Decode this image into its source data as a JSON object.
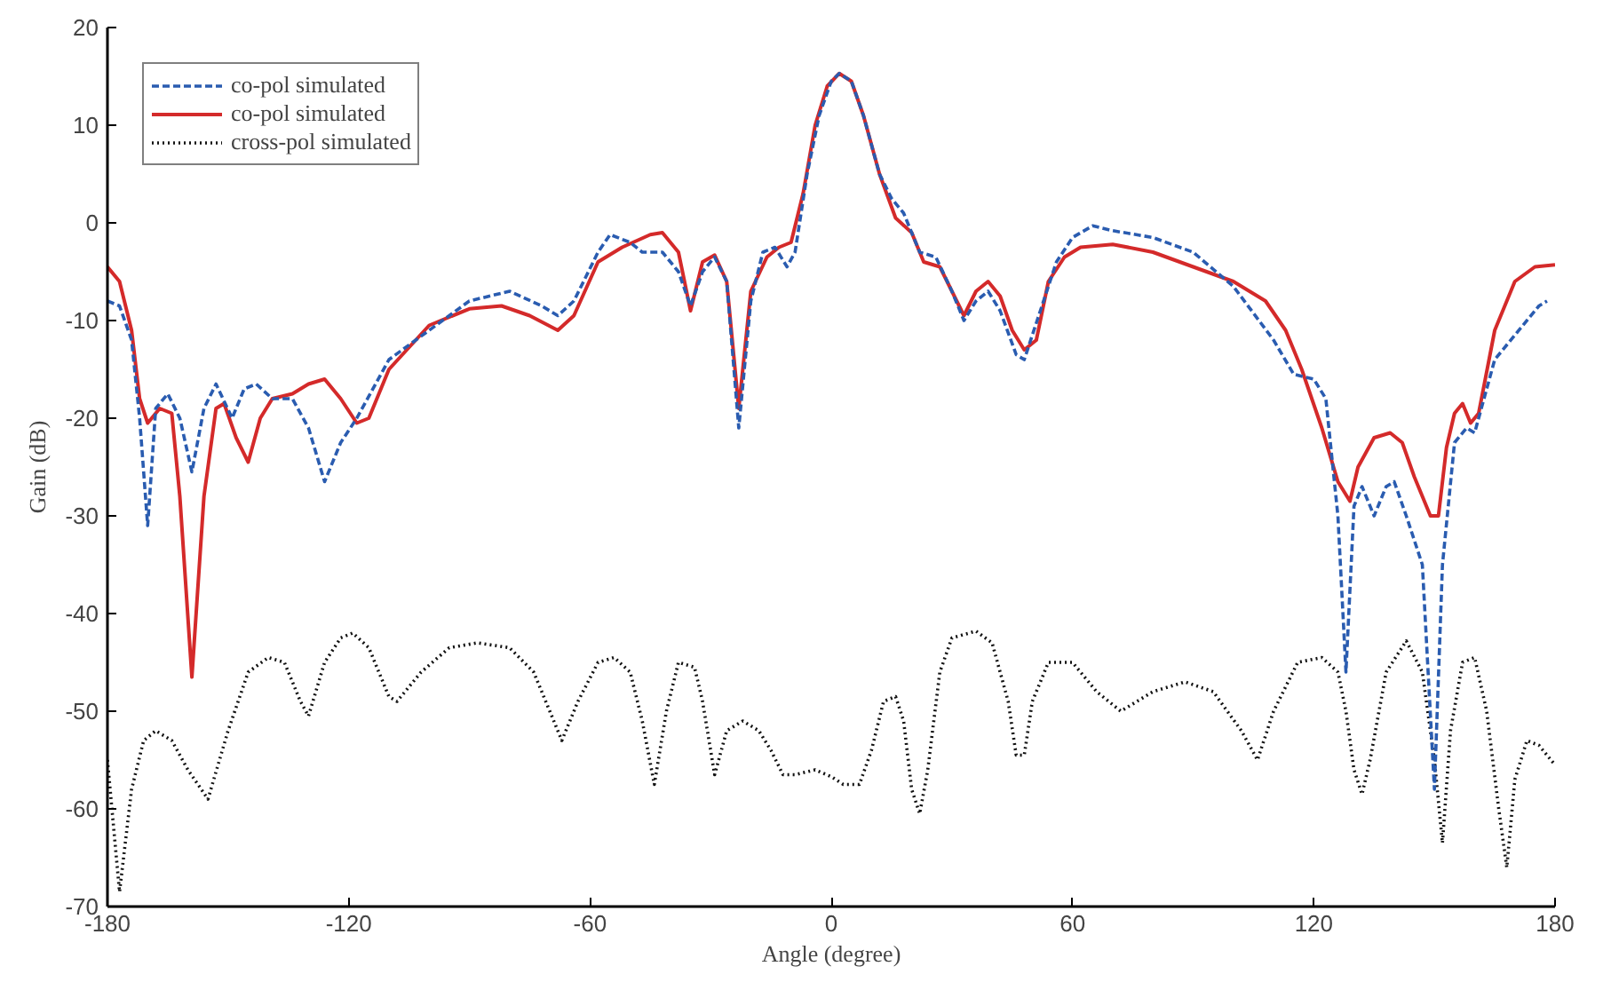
{
  "chart_data": {
    "type": "line",
    "xlabel": "Angle (degree)",
    "ylabel": "Gain (dB)",
    "xlim": [
      -180,
      180
    ],
    "ylim": [
      -70,
      20
    ],
    "xticks": [
      -180,
      -120,
      -60,
      0,
      60,
      120,
      180
    ],
    "yticks": [
      -70,
      -60,
      -50,
      -40,
      -30,
      -20,
      -10,
      0,
      10,
      20
    ],
    "grid": false,
    "legend": "top left",
    "marker": "none",
    "series": [
      {
        "name": "co-pol simulated",
        "color": "#2a5cb0",
        "line_style": "dashed",
        "x": [
          -180,
          -177,
          -174,
          -172,
          -170,
          -168,
          -165,
          -162,
          -159,
          -156,
          -153,
          -149,
          -146,
          -143,
          -139,
          -134,
          -130,
          -126,
          -122,
          -118,
          -110,
          -100,
          -90,
          -80,
          -72,
          -68,
          -64,
          -58,
          -55,
          -50,
          -47,
          -42,
          -38,
          -35,
          -32,
          -29,
          -26,
          -23,
          -20,
          -17,
          -14,
          -11,
          -9,
          -6,
          -3,
          0,
          2,
          5,
          8,
          12,
          15,
          18,
          22,
          26,
          30,
          33,
          36,
          39,
          42,
          46,
          48,
          52,
          56,
          60,
          65,
          70,
          80,
          90,
          100,
          110,
          115,
          120,
          123,
          126,
          128,
          130,
          132,
          135,
          138,
          140,
          143,
          147,
          150,
          152,
          155,
          158,
          160,
          165,
          170,
          176,
          178
        ],
        "values": [
          -8,
          -8.5,
          -12,
          -20,
          -31,
          -19,
          -17.5,
          -20,
          -25.5,
          -19,
          -16.5,
          -20,
          -17,
          -16.5,
          -18,
          -18,
          -21,
          -26.5,
          -22.5,
          -20,
          -14,
          -11,
          -8,
          -7,
          -8.5,
          -9.5,
          -8,
          -3,
          -1.2,
          -2,
          -3,
          -3,
          -5,
          -8.5,
          -5,
          -3.5,
          -6,
          -21,
          -8,
          -3,
          -2.5,
          -4.5,
          -3,
          5,
          11,
          14.5,
          15.3,
          14.5,
          11,
          5,
          2.5,
          1,
          -3,
          -3.5,
          -7,
          -10,
          -8,
          -7,
          -9,
          -13.5,
          -14,
          -9,
          -4,
          -1.5,
          -0.3,
          -0.8,
          -1.5,
          -3,
          -6.5,
          -12,
          -15.5,
          -16,
          -18,
          -30,
          -46,
          -29,
          -27,
          -30,
          -27,
          -26.5,
          -30,
          -35,
          -58,
          -35,
          -22.5,
          -21,
          -21.5,
          -14,
          -11.5,
          -8.5,
          -8
        ]
      },
      {
        "name": "co-pol simulated",
        "color": "#d42a2a",
        "line_style": "solid",
        "x": [
          -180,
          -177,
          -174,
          -172,
          -170,
          -167,
          -164,
          -162,
          -159,
          -156,
          -153,
          -151,
          -148,
          -145,
          -142,
          -139,
          -134,
          -130,
          -126,
          -122,
          -118,
          -115,
          -110,
          -100,
          -90,
          -82,
          -75,
          -68,
          -64,
          -58,
          -52,
          -45,
          -42,
          -38,
          -35,
          -32,
          -29,
          -26,
          -23,
          -20,
          -16,
          -13,
          -10,
          -7,
          -4,
          -1,
          2,
          5,
          8,
          12,
          16,
          20,
          23,
          27,
          30,
          33,
          36,
          39,
          42,
          45,
          48,
          51,
          54,
          58,
          62,
          70,
          80,
          90,
          100,
          108,
          113,
          117,
          122,
          126,
          129,
          131,
          135,
          139,
          142,
          145,
          149,
          151,
          153,
          155,
          157,
          159,
          161,
          165,
          170,
          175,
          180
        ],
        "values": [
          -4.5,
          -6,
          -11,
          -18,
          -20.5,
          -19,
          -19.5,
          -28,
          -46.5,
          -28,
          -19,
          -18.5,
          -22,
          -24.5,
          -20,
          -18,
          -17.5,
          -16.5,
          -16,
          -18,
          -20.5,
          -20,
          -15,
          -10.5,
          -8.8,
          -8.5,
          -9.5,
          -11,
          -9.5,
          -4,
          -2.5,
          -1.2,
          -1,
          -3,
          -9,
          -4,
          -3.3,
          -6,
          -19,
          -7,
          -3.5,
          -2.5,
          -2,
          3,
          10,
          14,
          15.3,
          14.5,
          11,
          5,
          0.5,
          -1,
          -4,
          -4.5,
          -7,
          -9.5,
          -7,
          -6,
          -7.5,
          -11,
          -13,
          -12,
          -6,
          -3.5,
          -2.5,
          -2.2,
          -3,
          -4.5,
          -6,
          -8,
          -11,
          -15,
          -21,
          -26.5,
          -28.5,
          -25,
          -22,
          -21.5,
          -22.5,
          -26,
          -30,
          -30,
          -23,
          -19.5,
          -18.5,
          -20.5,
          -19.5,
          -11,
          -6,
          -4.5,
          -4.3
        ]
      },
      {
        "name": "cross-pol simulated",
        "color": "#111111",
        "line_style": "dotted",
        "x": [
          -180,
          -177,
          -174,
          -171,
          -168,
          -164,
          -160,
          -155,
          -150,
          -145,
          -140,
          -136,
          -132,
          -130,
          -126,
          -122,
          -119,
          -115,
          -110,
          -108,
          -102,
          -95,
          -88,
          -80,
          -74,
          -70,
          -67,
          -63,
          -58,
          -54,
          -50,
          -47,
          -44,
          -41,
          -38,
          -34,
          -32,
          -29,
          -26,
          -22,
          -18,
          -15,
          -12,
          -9,
          -4,
          0,
          3,
          7,
          10,
          13,
          16,
          18,
          20,
          22,
          24,
          27,
          30,
          36,
          40,
          44,
          46,
          48,
          50,
          54,
          60,
          66,
          72,
          80,
          88,
          95,
          102,
          106,
          110,
          116,
          122,
          126,
          128,
          130,
          132,
          134,
          138,
          143,
          147,
          150,
          152,
          154,
          157,
          160,
          163,
          166,
          168,
          170,
          173,
          176,
          180
        ],
        "values": [
          -55,
          -68.5,
          -58,
          -53,
          -52,
          -53,
          -56,
          -59,
          -52,
          -46,
          -44.5,
          -45,
          -49,
          -50.5,
          -45,
          -42.5,
          -42,
          -43.5,
          -48.5,
          -49,
          -46,
          -43.5,
          -43,
          -43.5,
          -46,
          -50,
          -53,
          -49,
          -45,
          -44.5,
          -46,
          -51,
          -57.5,
          -50,
          -45,
          -45.5,
          -49,
          -56.5,
          -52,
          -51,
          -52,
          -54,
          -56.5,
          -56.5,
          -56,
          -56.7,
          -57.5,
          -57.5,
          -54,
          -49,
          -48.5,
          -51,
          -58,
          -60.5,
          -56,
          -46,
          -42.5,
          -41.8,
          -43,
          -49,
          -54.5,
          -54.5,
          -49,
          -45,
          -45,
          -48,
          -50,
          -48,
          -47,
          -48,
          -52,
          -55,
          -50,
          -45,
          -44.5,
          -46,
          -50,
          -56,
          -58.5,
          -55,
          -46,
          -42.8,
          -46,
          -55,
          -63.5,
          -52,
          -45,
          -44.5,
          -50,
          -60,
          -66,
          -57,
          -53,
          -53.5,
          -55.5
        ]
      }
    ]
  }
}
